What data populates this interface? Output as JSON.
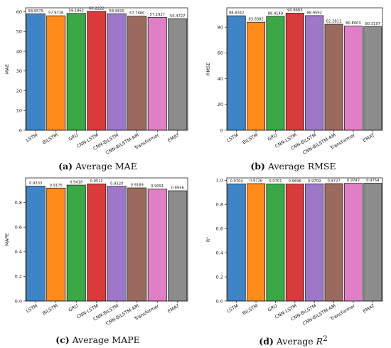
{
  "colors": [
    "#3d85c6",
    "#ff8c1a",
    "#3aa845",
    "#d93a3a",
    "#9e77c8",
    "#9b6a5e",
    "#e07fc5",
    "#8c8c8c"
  ],
  "chart_data": [
    {
      "type": "bar",
      "caption_letter": "(a)",
      "caption_text": "Average MAE",
      "ylabel": "MAE",
      "ylim": [
        0,
        62
      ],
      "yticks": [
        "0",
        "10",
        "20",
        "30",
        "40",
        "50",
        "60"
      ],
      "categories": [
        "LSTM",
        "BiLSTM",
        "GRU",
        "CNN-LSTM",
        "CNN-BiLSTM",
        "CNN-BiLSTM-AM",
        "Transformer",
        "EMAT"
      ],
      "values": [
        58.9579,
        57.9726,
        59.1862,
        60.2222,
        58.9815,
        57.768,
        57.1927,
        56.4727
      ],
      "value_labels": [
        "58.9579",
        "57.9726",
        "59.1862",
        "60.2222",
        "58.9815",
        "57.7680",
        "57.1927",
        "56.4727"
      ]
    },
    {
      "type": "bar",
      "caption_letter": "(b)",
      "caption_text": "Average RMSE",
      "ylabel": "RMSE",
      "ylim": [
        0,
        95
      ],
      "yticks": [
        "0",
        "20",
        "40",
        "60",
        "80"
      ],
      "categories": [
        "LSTM",
        "BiLSTM",
        "GRU",
        "CNN-LSTM",
        "CNN-BiLSTM",
        "CNN-BiLSTM-AM",
        "Transformer",
        "EMAT"
      ],
      "values": [
        88.8342,
        83.8382,
        88.4149,
        90.8683,
        88.9592,
        82.2811,
        80.8003,
        80.3197
      ],
      "value_labels": [
        "88.8342",
        "83.8382",
        "88.4149",
        "90.8683",
        "88.9592",
        "82.2811",
        "80.8003",
        "80.3197"
      ]
    },
    {
      "type": "bar",
      "caption_letter": "(c)",
      "caption_text": "Average MAPE",
      "ylabel": "MAPE",
      "ylim": [
        0,
        1.0
      ],
      "yticks": [
        "0.0",
        "0.2",
        "0.4",
        "0.6",
        "0.8"
      ],
      "categories": [
        "LSTM",
        "BiLSTM",
        "GRU",
        "CNN-LSTM",
        "CNN-BiLSTM",
        "CNN-BiLSTM-AM",
        "Transformer",
        "EMAT"
      ],
      "values": [
        0.9333,
        0.9175,
        0.9418,
        0.9512,
        0.932,
        0.9189,
        0.9091,
        0.8956
      ],
      "value_labels": [
        "0.9333",
        "0.9175",
        "0.9418",
        "0.9512",
        "0.9320",
        "0.9189",
        "0.9091",
        "0.8956"
      ]
    },
    {
      "type": "bar",
      "caption_letter": "(d)",
      "caption_text": "Average",
      "caption_math": "R",
      "caption_sup": "2",
      "ylabel": "R²",
      "ylim": [
        0,
        1.02
      ],
      "yticks": [
        "0.0",
        "0.2",
        "0.4",
        "0.6",
        "0.8",
        "1.0"
      ],
      "categories": [
        "LSTM",
        "BiLSTM",
        "GRU",
        "CNN-LSTM",
        "CNN-BiLSTM",
        "CNN-BiLSTM-AM",
        "Transformer",
        "EMAT"
      ],
      "values": [
        0.9704,
        0.9726,
        0.9701,
        0.9696,
        0.9709,
        0.9727,
        0.9747,
        0.9754
      ],
      "value_labels": [
        "0.9704",
        "0.9726",
        "0.9701",
        "0.9696",
        "0.9709",
        "0.9727",
        "0.9747",
        "0.9754"
      ]
    }
  ]
}
